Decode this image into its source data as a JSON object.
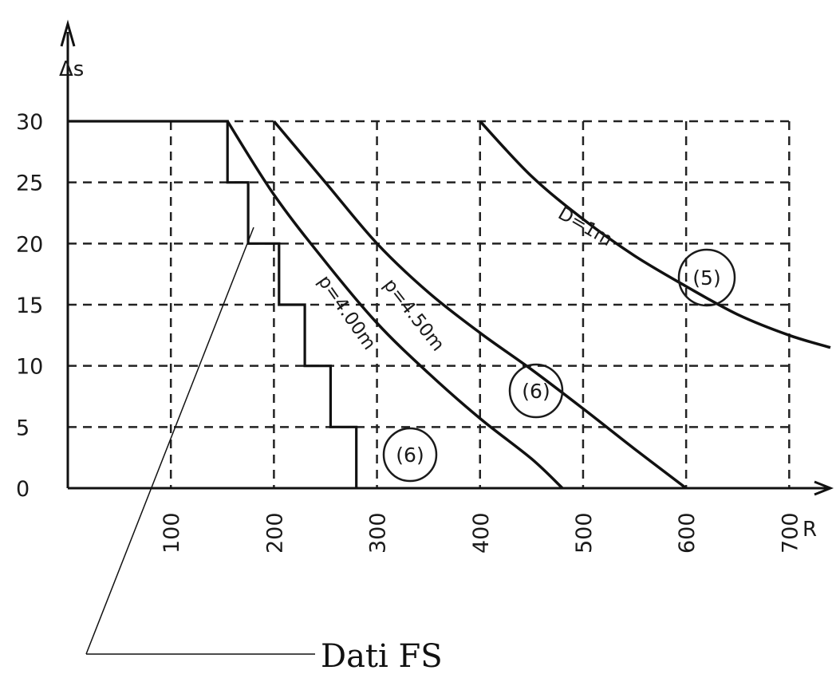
{
  "chart_data": {
    "type": "line",
    "xlabel": "R",
    "ylabel": "Δs",
    "xlim": [
      0,
      740
    ],
    "ylim": [
      0,
      30
    ],
    "x_ticks": [
      100,
      200,
      300,
      400,
      500,
      600,
      700
    ],
    "y_ticks": [
      0,
      5,
      10,
      15,
      20,
      25,
      30
    ],
    "grid": "dashed",
    "series": [
      {
        "name": "D=1m",
        "marker": "(5)",
        "points": [
          [
            400,
            30
          ],
          [
            450,
            25.5
          ],
          [
            500,
            22
          ],
          [
            550,
            19
          ],
          [
            600,
            16.5
          ],
          [
            650,
            14.2
          ],
          [
            700,
            12.5
          ],
          [
            740,
            11.5
          ]
        ]
      },
      {
        "name": "p=4.50m",
        "marker": "(6)",
        "points": [
          [
            200,
            30
          ],
          [
            250,
            25
          ],
          [
            300,
            20
          ],
          [
            350,
            16
          ],
          [
            400,
            12.7
          ],
          [
            450,
            9.7
          ],
          [
            500,
            6.5
          ],
          [
            550,
            3.2
          ],
          [
            600,
            0
          ]
        ]
      },
      {
        "name": "p=4.00m",
        "marker": "(6)",
        "points": [
          [
            155,
            30
          ],
          [
            200,
            24
          ],
          [
            250,
            18.5
          ],
          [
            300,
            13.5
          ],
          [
            350,
            9.4
          ],
          [
            400,
            5.7
          ],
          [
            450,
            2.4
          ],
          [
            480,
            0
          ]
        ]
      },
      {
        "name": "",
        "style": "step",
        "points": [
          [
            0,
            30
          ],
          [
            155,
            30
          ],
          [
            155,
            25
          ],
          [
            175,
            25
          ],
          [
            175,
            20
          ],
          [
            205,
            20
          ],
          [
            205,
            15
          ],
          [
            230,
            15
          ],
          [
            230,
            10
          ],
          [
            255,
            10
          ],
          [
            255,
            5
          ],
          [
            280,
            5
          ],
          [
            280,
            0
          ]
        ]
      }
    ],
    "annotations": [
      {
        "text": "Dati FS"
      }
    ]
  }
}
